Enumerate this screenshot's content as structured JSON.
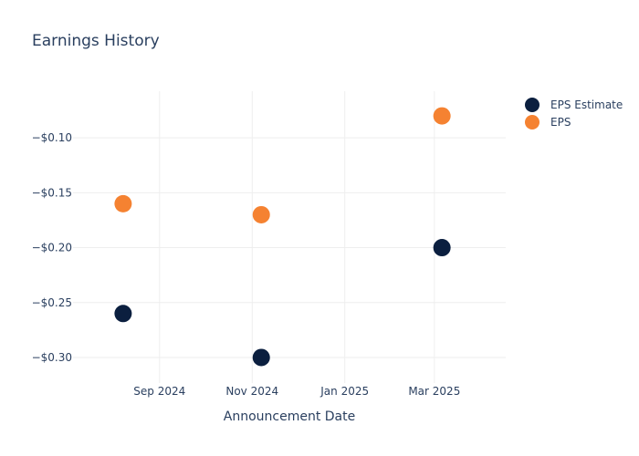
{
  "chart_data": {
    "type": "scatter",
    "title": "Earnings History",
    "xlabel": "Announcement Date",
    "ylabel": "",
    "x_ticks": [
      {
        "label": "Sep 2024",
        "date": "2024-09-01"
      },
      {
        "label": "Nov 2024",
        "date": "2024-11-01"
      },
      {
        "label": "Jan 2025",
        "date": "2025-01-01"
      },
      {
        "label": "Mar 2025",
        "date": "2025-03-01"
      }
    ],
    "y_ticks": [
      {
        "label": "−$0.10",
        "value": -0.1
      },
      {
        "label": "−$0.15",
        "value": -0.15
      },
      {
        "label": "−$0.20",
        "value": -0.2
      },
      {
        "label": "−$0.25",
        "value": -0.25
      },
      {
        "label": "−$0.30",
        "value": -0.3
      }
    ],
    "xlim": [
      "2024-07-06",
      "2025-04-17"
    ],
    "ylim": [
      -0.3233,
      -0.0575
    ],
    "grid": true,
    "legend_position": "top-right",
    "series": [
      {
        "name": "EPS Estimate",
        "color": "#0b1f3f",
        "points": [
          {
            "x": "2024-08-08",
            "y": -0.26
          },
          {
            "x": "2024-11-07",
            "y": -0.3
          },
          {
            "x": "2025-03-06",
            "y": -0.2
          }
        ]
      },
      {
        "name": "EPS",
        "color": "#f58231",
        "points": [
          {
            "x": "2024-08-08",
            "y": -0.16
          },
          {
            "x": "2024-11-07",
            "y": -0.17
          },
          {
            "x": "2025-03-06",
            "y": -0.08
          }
        ]
      }
    ]
  }
}
